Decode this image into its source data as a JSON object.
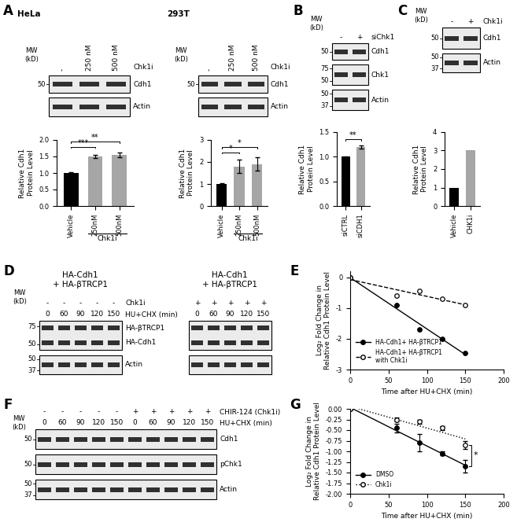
{
  "panel_labels": [
    "A",
    "B",
    "C",
    "D",
    "E",
    "F",
    "G"
  ],
  "blots": [
    {
      "title": "HeLa",
      "mw_label": "MW\n(kD)",
      "headers": [
        {
          "lanes": [
            "-",
            "250 nM",
            "500 nM"
          ],
          "label": "Chk1i"
        }
      ],
      "boxes": [
        {
          "bands": [
            "Cdh1"
          ],
          "mw": [
            50
          ]
        },
        {
          "bands": [
            "Actin"
          ],
          "mw": []
        }
      ]
    },
    {
      "title": "293T",
      "mw_label": "MW\n(kD)",
      "headers": [
        {
          "lanes": [
            "-",
            "250 nM",
            "500 nM"
          ],
          "label": "Chk1i"
        }
      ],
      "boxes": [
        {
          "bands": [
            "Cdh1"
          ],
          "mw": [
            50
          ]
        },
        {
          "bands": [
            "Actin"
          ],
          "mw": []
        }
      ]
    },
    {
      "mw_label": "MW\n(kD)",
      "headers": [
        {
          "lanes": [
            "-",
            "+"
          ],
          "label": "siChk1"
        }
      ],
      "boxes": [
        {
          "bands": [
            "Cdh1"
          ],
          "mw": [
            50
          ]
        },
        {
          "bands": [
            "Chk1"
          ],
          "mw": [
            75,
            50
          ]
        },
        {
          "bands": [
            "Actin"
          ],
          "mw": [
            50,
            37
          ]
        }
      ]
    },
    {
      "mw_label": "MW\n(kD)",
      "headers": [
        {
          "lanes": [
            "-",
            "+"
          ],
          "label": "Chk1i"
        }
      ],
      "boxes": [
        {
          "bands": [
            "Cdh1"
          ],
          "mw": [
            50
          ]
        },
        {
          "bands": [
            "Actin"
          ],
          "mw": [
            50,
            37
          ]
        }
      ]
    },
    {
      "title": "HA-Cdh1\n+ HA-βTRCP1",
      "mw_label": "MW\n(kD)",
      "headers": [
        {
          "lanes": [
            "-",
            "-",
            "-",
            "-",
            "-"
          ],
          "label": "Chk1i"
        },
        {
          "lanes": [
            "0",
            "60",
            "90",
            "120",
            "150"
          ],
          "label": "HU+CHX (min)"
        }
      ],
      "boxes": [
        {
          "bands": [
            "HA-βTRCP1",
            "HA-Cdh1"
          ],
          "mw": [
            75,
            50
          ]
        },
        {
          "bands": [
            "Actin"
          ],
          "mw": [
            50,
            37
          ]
        }
      ]
    },
    {
      "title": "HA-Cdh1\n+ HA-βTRCP1",
      "headers": [
        {
          "lanes": [
            "+",
            "+",
            "+",
            "+",
            "+"
          ]
        },
        {
          "lanes": [
            "0",
            "60",
            "90",
            "120",
            "150"
          ]
        }
      ],
      "boxes": [
        {
          "bands": [
            null,
            null
          ],
          "mw": []
        },
        {
          "bands": [
            null
          ],
          "mw": []
        }
      ]
    },
    {
      "mw_label": "MW\n(kD)",
      "headers": [
        {
          "lanes": [
            "-",
            "-",
            "-",
            "-",
            "-",
            "+",
            "+",
            "+",
            "+",
            "+"
          ],
          "label": "CHIR-124 (Chk1i)"
        },
        {
          "lanes": [
            "0",
            "60",
            "90",
            "120",
            "150",
            "0",
            "60",
            "90",
            "120",
            "150"
          ],
          "label": "HU+CHX (min)"
        }
      ],
      "boxes": [
        {
          "bands": [
            "Cdh1"
          ],
          "mw": [
            50
          ]
        },
        {
          "bands": [
            "pChk1"
          ],
          "mw": [
            50
          ]
        },
        {
          "bands": [
            "Actin"
          ],
          "mw": [
            50,
            37
          ]
        }
      ]
    }
  ],
  "chart_data": [
    {
      "type": "bar",
      "categories": [
        "Vehicle",
        "250nM",
        "500nM"
      ],
      "values": [
        1.0,
        1.5,
        1.55
      ],
      "errors": [
        0.02,
        0.05,
        0.08
      ],
      "colors": [
        "#000000",
        "#a6a6a6",
        "#a6a6a6"
      ],
      "ylabel": "Relative Cdh1\nProtein Level",
      "ylim": [
        0,
        2
      ],
      "yticks": [
        {
          "value": 0,
          "label": "0.0"
        },
        {
          "value": 0.5,
          "label": "0.5"
        },
        {
          "value": 1,
          "label": "1.0"
        },
        {
          "value": 1.5,
          "label": "1.5"
        },
        {
          "value": 2,
          "label": "2.0"
        }
      ],
      "group": {
        "label": "Chk1i",
        "members": [
          "250nM",
          "500nM"
        ]
      },
      "annotations": [
        {
          "text": "***",
          "from": "Vehicle",
          "to": "250nM"
        },
        {
          "text": "**",
          "from": "Vehicle",
          "to": "500nM"
        }
      ]
    },
    {
      "type": "bar",
      "categories": [
        "Vehicle",
        "250nM",
        "500nM"
      ],
      "values": [
        1.0,
        1.8,
        1.9
      ],
      "errors": [
        0.02,
        0.3,
        0.3
      ],
      "colors": [
        "#000000",
        "#a6a6a6",
        "#a6a6a6"
      ],
      "ylabel": "Relative Cdh1\nProtein Level",
      "ylim": [
        0,
        3
      ],
      "yticks": [
        0,
        1,
        2,
        3
      ],
      "group": {
        "label": "Chk1i",
        "members": [
          "250nM",
          "500nM"
        ]
      },
      "annotations": [
        {
          "text": "*",
          "from": "Vehicle",
          "to": "250nM"
        },
        {
          "text": "*",
          "from": "Vehicle",
          "to": "500nM"
        }
      ]
    },
    {
      "type": "bar",
      "categories": [
        "siCTRL",
        "siCDH1"
      ],
      "values": [
        1.0,
        1.2
      ],
      "errors": [
        0.01,
        0.03
      ],
      "colors": [
        "#000000",
        "#a6a6a6"
      ],
      "ylabel": "Relative Cdh1\nProtein Level",
      "ylim": [
        0,
        1.5
      ],
      "yticks": [
        {
          "value": 0,
          "label": "0.0"
        },
        {
          "value": 0.5,
          "label": "0.5"
        },
        {
          "value": 1,
          "label": "1.0"
        },
        {
          "value": 1.5,
          "label": "1.5"
        }
      ],
      "annotations": [
        {
          "text": "**",
          "from": "siCTRL",
          "to": "siCDH1"
        }
      ]
    },
    {
      "type": "bar",
      "categories": [
        "Vehicle",
        "CHK1i"
      ],
      "values": [
        1.0,
        3.0
      ],
      "colors": [
        "#000000",
        "#a6a6a6"
      ],
      "ylabel": "Relative Cdh1\nProtein Level",
      "ylim": [
        0,
        4
      ],
      "yticks": [
        0,
        1,
        2,
        3,
        4
      ]
    },
    {
      "type": "line",
      "x": [
        0,
        60,
        90,
        120,
        150
      ],
      "series": [
        {
          "name": "HA-Cdh1+ HA-βTRCP1",
          "color": "#000000",
          "marker": "filled_circle",
          "line_style": "solid",
          "values": [
            0,
            -0.9,
            -1.7,
            -2.0,
            -2.45
          ]
        },
        {
          "name": "HA-Cdh1+ HA-βTRCP1\nwith Chk1i",
          "color": "#000000",
          "marker": "open_circle",
          "line_style": "dashed",
          "values": [
            0,
            -0.6,
            -0.45,
            -0.7,
            -0.9
          ]
        }
      ],
      "xlabel": "Time after HU+CHX (min)",
      "ylabel": "Log₂ Fold Change in\nRelative Cdh1 Protein Level",
      "xlim": [
        0,
        200
      ],
      "xticks": [
        0,
        50,
        100,
        150,
        200
      ],
      "ylim": [
        -3,
        0.2
      ],
      "yticks": [
        -3,
        -2,
        -1,
        0
      ],
      "legend": "lower left"
    },
    {
      "type": "line",
      "x": [
        0,
        60,
        90,
        120,
        150
      ],
      "series": [
        {
          "name": "DMSO",
          "color": "#000000",
          "marker": "filled_circle",
          "line_style": "solid",
          "values": [
            0,
            -0.45,
            -0.8,
            -1.05,
            -1.35
          ],
          "errors": [
            0,
            0.1,
            0.2,
            0.05,
            0.15
          ]
        },
        {
          "name": "Chk1i",
          "color": "#000000",
          "marker": "open_circle",
          "line_style": "dotted",
          "values": [
            0,
            -0.25,
            -0.3,
            -0.45,
            -0.85
          ],
          "errors": [
            0,
            0.05,
            0.05,
            0.05,
            0.1
          ]
        }
      ],
      "xlabel": "Time after HU+CHX (min)",
      "ylabel": "Log₂ Fold Change in\nRelative Cdh1 Protein Level",
      "xlim": [
        0,
        200
      ],
      "xticks": [
        0,
        50,
        100,
        150,
        200
      ],
      "ylim": [
        -2.0,
        0.0
      ],
      "yticks": [
        {
          "value": -2.0,
          "label": "-2.00"
        },
        {
          "value": -1.75,
          "label": "-1.75"
        },
        {
          "value": -1.5,
          "label": "-1.50"
        },
        {
          "value": -1.25,
          "label": "-1.25"
        },
        {
          "value": -1.0,
          "label": "-1.00"
        },
        {
          "value": -0.75,
          "label": "-0.75"
        },
        {
          "value": -0.5,
          "label": "-0.50"
        },
        {
          "value": -0.25,
          "label": "-0.25"
        },
        {
          "value": 0.0,
          "label": "0.00"
        }
      ],
      "legend": "lower left",
      "annotations": [
        {
          "text": "*",
          "x": 150,
          "between": [
            "DMSO",
            "Chk1i"
          ]
        }
      ]
    }
  ]
}
